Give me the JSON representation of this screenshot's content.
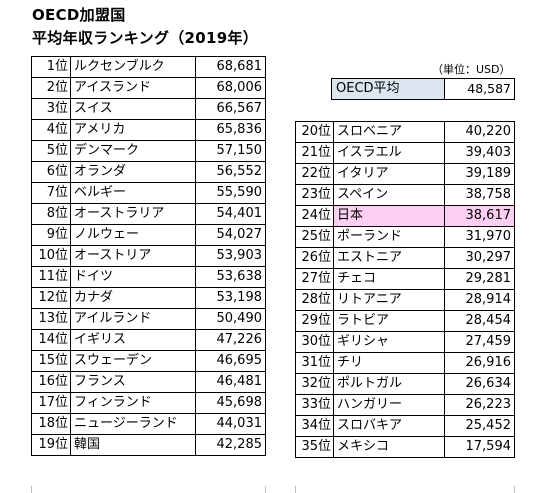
{
  "header": {
    "title_line1": "OECD加盟国",
    "title_line2": "平均年収ランキング（2019年）"
  },
  "unit_note": "（単位：USD）",
  "oecd_average": {
    "label": "OECD平均",
    "value": "48,587"
  },
  "highlight_color": "#fccff2",
  "oecd_label_bg": "#dbe6f1",
  "left_rows": [
    {
      "rank": "1位",
      "country": "ルクセンブルク",
      "value": "68,681"
    },
    {
      "rank": "2位",
      "country": "アイスランド",
      "value": "68,006"
    },
    {
      "rank": "3位",
      "country": "スイス",
      "value": "66,567"
    },
    {
      "rank": "4位",
      "country": "アメリカ",
      "value": "65,836"
    },
    {
      "rank": "5位",
      "country": "デンマーク",
      "value": "57,150"
    },
    {
      "rank": "6位",
      "country": "オランダ",
      "value": "56,552"
    },
    {
      "rank": "7位",
      "country": "ベルギー",
      "value": "55,590"
    },
    {
      "rank": "8位",
      "country": "オーストラリア",
      "value": "54,401"
    },
    {
      "rank": "9位",
      "country": "ノルウェー",
      "value": "54,027"
    },
    {
      "rank": "10位",
      "country": "オーストリア",
      "value": "53,903"
    },
    {
      "rank": "11位",
      "country": "ドイツ",
      "value": "53,638"
    },
    {
      "rank": "12位",
      "country": "カナダ",
      "value": "53,198"
    },
    {
      "rank": "13位",
      "country": "アイルランド",
      "value": "50,490"
    },
    {
      "rank": "14位",
      "country": "イギリス",
      "value": "47,226"
    },
    {
      "rank": "15位",
      "country": "スウェーデン",
      "value": "46,695"
    },
    {
      "rank": "16位",
      "country": "フランス",
      "value": "46,481"
    },
    {
      "rank": "17位",
      "country": "フィンランド",
      "value": "45,698"
    },
    {
      "rank": "18位",
      "country": "ニュージーランド",
      "value": "44,031"
    },
    {
      "rank": "19位",
      "country": "韓国",
      "value": "42,285"
    }
  ],
  "right_rows": [
    {
      "rank": "20位",
      "country": "スロベニア",
      "value": "40,220"
    },
    {
      "rank": "21位",
      "country": "イスラエル",
      "value": "39,403"
    },
    {
      "rank": "22位",
      "country": "イタリア",
      "value": "39,189"
    },
    {
      "rank": "23位",
      "country": "スペイン",
      "value": "38,758"
    },
    {
      "rank": "24位",
      "country": "日本",
      "value": "38,617",
      "highlight": true
    },
    {
      "rank": "25位",
      "country": "ポーランド",
      "value": "31,970"
    },
    {
      "rank": "26位",
      "country": "エストニア",
      "value": "30,297"
    },
    {
      "rank": "27位",
      "country": "チェコ",
      "value": "29,281"
    },
    {
      "rank": "28位",
      "country": "リトアニア",
      "value": "28,914"
    },
    {
      "rank": "29位",
      "country": "ラトビア",
      "value": "28,454"
    },
    {
      "rank": "30位",
      "country": "ギリシャ",
      "value": "27,459"
    },
    {
      "rank": "31位",
      "country": "チリ",
      "value": "26,916"
    },
    {
      "rank": "32位",
      "country": "ポルトガル",
      "value": "26,634"
    },
    {
      "rank": "33位",
      "country": "ハンガリー",
      "value": "26,223"
    },
    {
      "rank": "34位",
      "country": "スロバキア",
      "value": "25,452"
    },
    {
      "rank": "35位",
      "country": "メキシコ",
      "value": "17,594"
    }
  ]
}
